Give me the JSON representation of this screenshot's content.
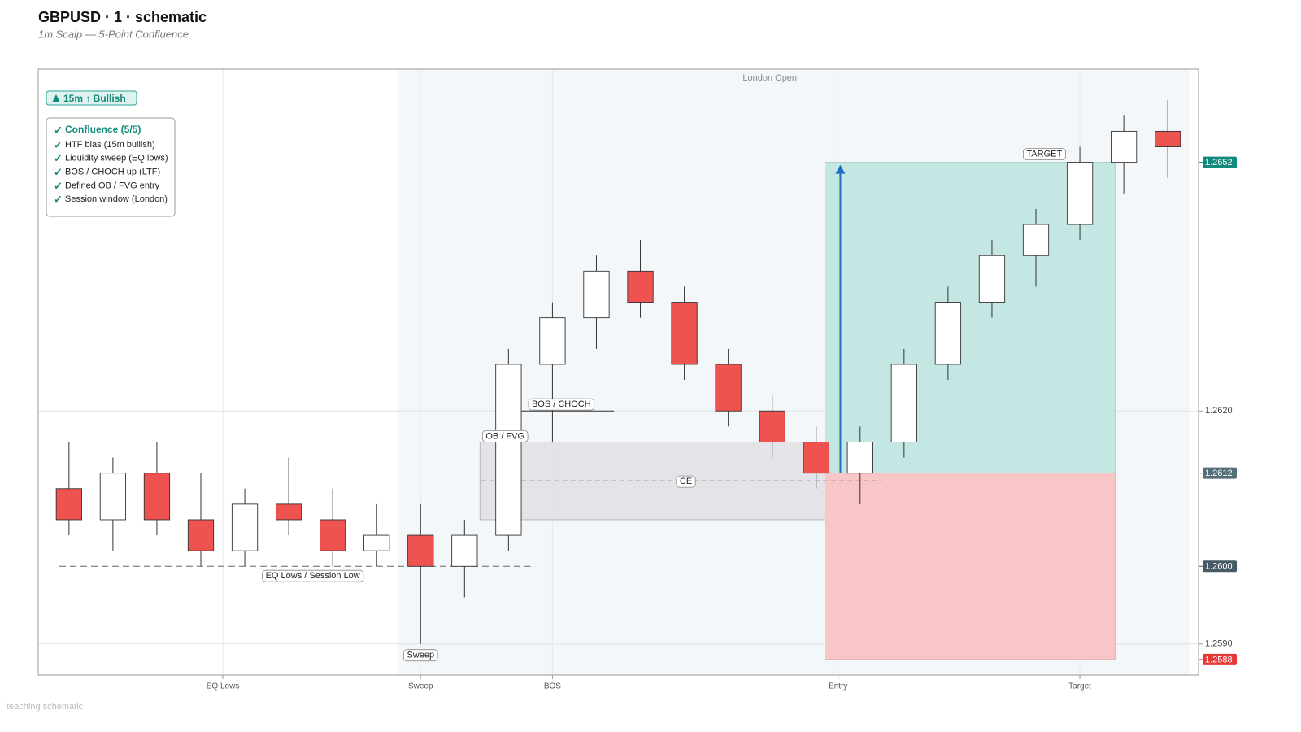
{
  "chart_data": {
    "type": "candlestick",
    "title": "GBPUSD · 1 · schematic",
    "subtitle": "1m Scalp — 5-Point Confluence",
    "note": "teaching schematic",
    "x": [
      0,
      1,
      2,
      3,
      4,
      5,
      6,
      7,
      8,
      9,
      10,
      11,
      12,
      13,
      14,
      15,
      16,
      17,
      18,
      19,
      20,
      21,
      22,
      23,
      24,
      25
    ],
    "open": [
      1.261,
      1.2606,
      1.2612,
      1.2606,
      1.2602,
      1.2608,
      1.2606,
      1.2602,
      1.2604,
      1.26,
      1.2604,
      1.2626,
      1.2632,
      1.2638,
      1.2634,
      1.2626,
      1.262,
      1.2616,
      1.2612,
      1.2616,
      1.2626,
      1.2634,
      1.264,
      1.2644,
      1.2652,
      1.2656
    ],
    "high": [
      1.2616,
      1.2614,
      1.2616,
      1.2612,
      1.261,
      1.2614,
      1.261,
      1.2608,
      1.2608,
      1.2606,
      1.2628,
      1.2634,
      1.264,
      1.2642,
      1.2636,
      1.2628,
      1.2622,
      1.2618,
      1.2618,
      1.2628,
      1.2636,
      1.2642,
      1.2646,
      1.2654,
      1.2658,
      1.266
    ],
    "low": [
      1.2604,
      1.2602,
      1.2604,
      1.26,
      1.26,
      1.2604,
      1.26,
      1.26,
      1.259,
      1.2596,
      1.2602,
      1.2616,
      1.2628,
      1.2632,
      1.2624,
      1.2618,
      1.2614,
      1.261,
      1.2608,
      1.2614,
      1.2624,
      1.2632,
      1.2636,
      1.2642,
      1.2648,
      1.265
    ],
    "close": [
      1.2606,
      1.2612,
      1.2606,
      1.2602,
      1.2608,
      1.2606,
      1.2602,
      1.2604,
      1.26,
      1.2604,
      1.2626,
      1.2632,
      1.2638,
      1.2634,
      1.2626,
      1.262,
      1.2616,
      1.2612,
      1.2616,
      1.2626,
      1.2634,
      1.264,
      1.2644,
      1.2652,
      1.2656,
      1.2654
    ],
    "up_color": "#ffffff",
    "down_color": "#ef5350",
    "xlim": [
      -0.7,
      25.7
    ],
    "ylim": [
      1.2586,
      1.2664
    ],
    "xticks": [
      {
        "value": 3.5,
        "label": "EQ Lows"
      },
      {
        "value": 8,
        "label": "Sweep"
      },
      {
        "value": 11,
        "label": "BOS"
      },
      {
        "value": 17.5,
        "label": "Entry"
      },
      {
        "value": 23,
        "label": "Target"
      }
    ],
    "yticks": [
      {
        "value": 1.262,
        "label": "1.2620"
      },
      {
        "value": 1.259,
        "label": "1.2590"
      }
    ],
    "grid": true,
    "session": {
      "label": "London Open",
      "x": [
        7.5,
        25.5
      ],
      "color": "#f3f7fa"
    },
    "eq_level": {
      "label": "EQ Lows / Session Low",
      "value": 1.26,
      "x": [
        -0.22,
        10.5
      ]
    },
    "bos_level": {
      "label": "BOS / CHOCH",
      "value": 1.262,
      "x": [
        10.3,
        12.4
      ]
    },
    "zone": {
      "label": "OB / FVG",
      "x": [
        9.35,
        17.2
      ],
      "y": [
        1.2606,
        1.2616
      ],
      "color": "#e0dfe3"
    },
    "ce": {
      "label": "CE",
      "value": 1.2611,
      "x": [
        9.38,
        18.47
      ]
    },
    "trade": {
      "x": [
        17.2,
        23.8
      ],
      "entry": 1.2612,
      "target": 1.2652,
      "stop": 1.2588,
      "target_label": "TARGET",
      "target_color": "#c5e7e3",
      "stop_color": "#f8c6c6",
      "arrow_x": 17.55,
      "arrow_color": "#1f6fc0"
    },
    "sweep_label": "Sweep",
    "price_badges": [
      {
        "value": 1.2652,
        "color": "#12897b"
      },
      {
        "value": 1.2612,
        "color": "#546e7a"
      },
      {
        "value": 1.26,
        "label": "1.2600",
        "color": "#455a64"
      },
      {
        "value": 1.2588,
        "color": "#e53935"
      }
    ],
    "htf_badge": "15m ↑ Bullish",
    "checklist": {
      "title": "Confluence (5/5)",
      "items": [
        "HTF bias (15m bullish)",
        "Liquidity sweep (EQ lows)",
        "BOS / CHOCH up (LTF)",
        "Defined OB / FVG entry",
        "Session window (London)"
      ]
    }
  }
}
